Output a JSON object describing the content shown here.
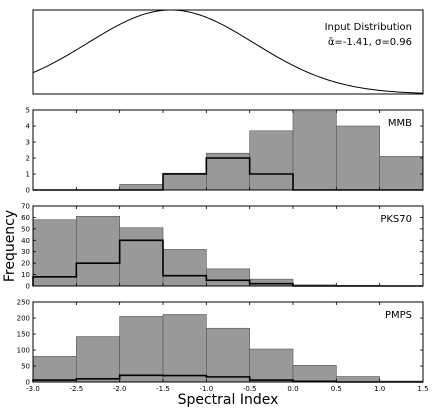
{
  "chart_data": {
    "type": "bar",
    "xlabel": "Spectral Index",
    "ylabel": "Frequency",
    "x_ticks": [
      "-3.0",
      "-2.5",
      "-2.0",
      "-1.5",
      "-1.0",
      "-0.5",
      "0.0",
      "0.5",
      "1.0",
      "1.5"
    ],
    "xlim": [
      -3.0,
      1.5
    ],
    "bin_edges": [
      -3.0,
      -2.5,
      -2.0,
      -1.5,
      -1.0,
      -0.5,
      0.0,
      0.5,
      1.0,
      1.5
    ],
    "input_distribution": {
      "title": "Input Distribution",
      "annotation": "ᾱ=-1.41, σ=0.96",
      "mean": -1.41,
      "sigma": 0.96
    },
    "panels": [
      {
        "label": "MMB",
        "ylim": [
          0,
          5
        ],
        "y_ticks": [
          "0",
          "1",
          "2",
          "3",
          "4",
          "5"
        ],
        "gray_values": [
          0,
          0,
          0.35,
          1.05,
          2.3,
          3.7,
          4.9,
          4.0,
          2.1
        ],
        "outline_values": [
          0,
          0,
          0,
          1,
          2,
          1,
          0,
          0,
          0
        ]
      },
      {
        "label": "PKS70",
        "ylim": [
          0,
          70
        ],
        "y_ticks": [
          "0",
          "10",
          "20",
          "30",
          "40",
          "50",
          "60",
          "70"
        ],
        "gray_values": [
          58,
          61,
          51,
          32,
          15,
          6,
          1,
          0.5,
          0
        ],
        "outline_values": [
          8,
          20,
          40,
          9,
          5,
          2,
          0,
          0,
          0
        ]
      },
      {
        "label": "PMPS",
        "ylim": [
          0,
          250
        ],
        "y_ticks": [
          "0",
          "50",
          "100",
          "150",
          "200",
          "250"
        ],
        "gray_values": [
          80,
          142,
          205,
          211,
          168,
          103,
          52,
          17,
          3
        ],
        "outline_values": [
          6,
          10,
          21,
          20,
          16,
          6,
          2,
          0,
          0
        ]
      }
    ],
    "colors": {
      "bars": "#999999",
      "outline": "#000000",
      "curve": "#000000"
    }
  }
}
